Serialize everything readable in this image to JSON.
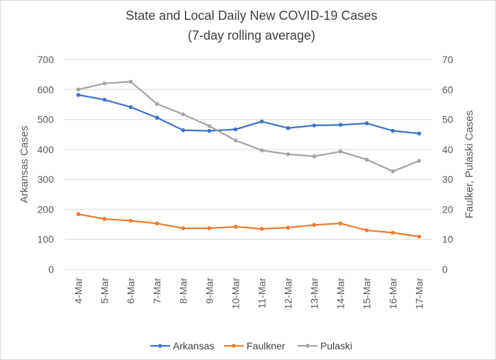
{
  "chart_data": {
    "type": "line",
    "title": "State and Local Daily New COVID-19 Cases",
    "subtitle": "(7-day rolling average)",
    "ylabel_left": "Arkansas Cases",
    "ylabel_right": "Faulker, Pulaski Cases",
    "categories": [
      "4-Mar",
      "5-Mar",
      "6-Mar",
      "7-Mar",
      "8-Mar",
      "9-Mar",
      "10-Mar",
      "11-Mar",
      "12-Mar",
      "13-Mar",
      "14-Mar",
      "15-Mar",
      "16-Mar",
      "17-Mar"
    ],
    "ylim_left": [
      0,
      700
    ],
    "ylim_right": [
      0,
      70
    ],
    "yticks_left": [
      "0",
      "100",
      "200",
      "300",
      "400",
      "500",
      "600",
      "700"
    ],
    "yticks_right": [
      "0",
      "10",
      "20",
      "30",
      "40",
      "50",
      "60",
      "70"
    ],
    "grid": true,
    "legend_position": "bottom",
    "series": [
      {
        "name": "Arkansas",
        "axis": "left",
        "color": "#4472c4",
        "values": [
          582,
          566,
          541,
          506,
          464,
          462,
          467,
          493,
          471,
          480,
          482,
          487,
          462,
          453
        ]
      },
      {
        "name": "Faulkner",
        "axis": "right",
        "color": "#ed7d31",
        "values": [
          18.4,
          16.8,
          16.2,
          15.3,
          13.7,
          13.7,
          14.2,
          13.5,
          13.9,
          14.8,
          15.3,
          13.0,
          12.2,
          10.9
        ]
      },
      {
        "name": "Pulaski",
        "axis": "right",
        "color": "#a5a5a5",
        "values": [
          60.0,
          62.0,
          62.6,
          55.2,
          51.7,
          47.8,
          43.0,
          39.7,
          38.4,
          37.7,
          39.3,
          36.6,
          32.7,
          36.2
        ]
      }
    ]
  }
}
